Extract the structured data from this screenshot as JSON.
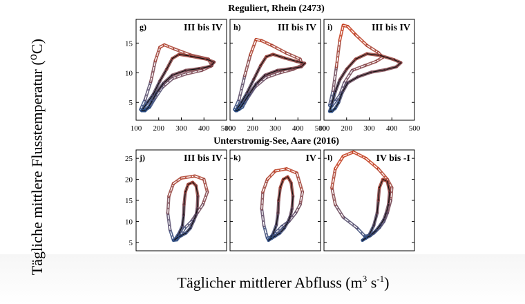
{
  "y_axis_title": "Tägliche mittlere Flusstemperatur (",
  "y_axis_unit_sup": "o",
  "y_axis_unit": "C)",
  "x_axis_title": "Täglicher mittlerer Abfluss (m",
  "x_axis_sup1": "3",
  "x_axis_mid": " s",
  "x_axis_sup2": "-1",
  "x_axis_end": ")",
  "colors": {
    "warm": "#c43c1c",
    "warm_light": "#f0a080",
    "cool": "#1f4e8c",
    "cool_light": "#9ab4d8",
    "black": "#111111"
  },
  "chart_data": [
    {
      "row_title": "Reguliert, Rhein (2473)",
      "xlim": [
        100,
        500
      ],
      "xticks": [
        100,
        200,
        300,
        400,
        500
      ],
      "ylim": [
        2,
        19
      ],
      "yticks": [
        5,
        10,
        15
      ],
      "panels": [
        {
          "letter": "g)",
          "label": "III bis IV",
          "dashed_loop": [
            [
              120,
              3.8
            ],
            [
              140,
              5.5
            ],
            [
              165,
              8.5
            ],
            [
              185,
              12
            ],
            [
              205,
              14.3
            ],
            [
              225,
              14.7
            ],
            [
              270,
              14
            ],
            [
              340,
              13
            ],
            [
              420,
              12.3
            ],
            [
              435,
              11.2
            ],
            [
              390,
              10.4
            ],
            [
              320,
              9.8
            ],
            [
              260,
              9
            ],
            [
              215,
              7.5
            ],
            [
              180,
              5.5
            ],
            [
              160,
              4.2
            ],
            [
              135,
              3.6
            ],
            [
              120,
              3.8
            ]
          ],
          "solid_loop": [
            [
              125,
              3.6
            ],
            [
              150,
              5
            ],
            [
              175,
              6.3
            ],
            [
              205,
              8.6
            ],
            [
              235,
              10.6
            ],
            [
              260,
              12.4
            ],
            [
              290,
              13.1
            ],
            [
              340,
              12.8
            ],
            [
              410,
              12.3
            ],
            [
              445,
              11.8
            ],
            [
              430,
              11.1
            ],
            [
              380,
              10.7
            ],
            [
              320,
              10.4
            ],
            [
              260,
              9.6
            ],
            [
              220,
              8.2
            ],
            [
              190,
              6.6
            ],
            [
              170,
              5.2
            ],
            [
              155,
              4.2
            ],
            [
              140,
              3.6
            ],
            [
              125,
              3.6
            ]
          ]
        },
        {
          "letter": "h)",
          "label": "III bis IV",
          "dashed_loop": [
            [
              120,
              3.8
            ],
            [
              140,
              5.5
            ],
            [
              165,
              9.5
            ],
            [
              190,
              13
            ],
            [
              215,
              15.6
            ],
            [
              240,
              15.4
            ],
            [
              285,
              14.6
            ],
            [
              350,
              13.3
            ],
            [
              410,
              12.3
            ],
            [
              420,
              11.3
            ],
            [
              380,
              10.6
            ],
            [
              320,
              10
            ],
            [
              260,
              9.2
            ],
            [
              210,
              7.6
            ],
            [
              175,
              5.6
            ],
            [
              155,
              4.2
            ],
            [
              130,
              3.6
            ],
            [
              120,
              3.8
            ]
          ],
          "solid_loop": [
            [
              125,
              3.6
            ],
            [
              150,
              5
            ],
            [
              175,
              6.6
            ],
            [
              205,
              8.9
            ],
            [
              235,
              11.2
            ],
            [
              260,
              12.7
            ],
            [
              290,
              13.1
            ],
            [
              340,
              12.5
            ],
            [
              395,
              11.9
            ],
            [
              430,
              11.6
            ],
            [
              415,
              11
            ],
            [
              370,
              10.7
            ],
            [
              310,
              10.4
            ],
            [
              255,
              9.6
            ],
            [
              215,
              8.1
            ],
            [
              185,
              6.4
            ],
            [
              160,
              4.9
            ],
            [
              140,
              3.8
            ],
            [
              125,
              3.6
            ]
          ]
        },
        {
          "letter": "i)",
          "label": "III bis IV",
          "dashed_loop": [
            [
              125,
              4.5
            ],
            [
              140,
              7
            ],
            [
              155,
              11
            ],
            [
              170,
              15.5
            ],
            [
              185,
              18
            ],
            [
              205,
              17.8
            ],
            [
              240,
              16.4
            ],
            [
              290,
              14.6
            ],
            [
              340,
              13.4
            ],
            [
              360,
              12.6
            ],
            [
              330,
              11.9
            ],
            [
              280,
              11.2
            ],
            [
              225,
              10.4
            ],
            [
              190,
              8.3
            ],
            [
              170,
              6.2
            ],
            [
              150,
              5.2
            ],
            [
              135,
              4.4
            ],
            [
              125,
              4.5
            ]
          ],
          "solid_loop": [
            [
              125,
              3.5
            ],
            [
              135,
              4.8
            ],
            [
              150,
              6.8
            ],
            [
              170,
              8.8
            ],
            [
              200,
              10.6
            ],
            [
              240,
              12.3
            ],
            [
              290,
              13.2
            ],
            [
              350,
              12.9
            ],
            [
              410,
              12.2
            ],
            [
              440,
              11.7
            ],
            [
              420,
              11
            ],
            [
              370,
              10.5
            ],
            [
              310,
              10.1
            ],
            [
              250,
              9.3
            ],
            [
              205,
              8.3
            ],
            [
              180,
              6.6
            ],
            [
              165,
              5
            ],
            [
              150,
              4
            ],
            [
              135,
              3.5
            ],
            [
              125,
              3.5
            ]
          ]
        }
      ]
    },
    {
      "row_title": "Unterstromig-See, Aare (2016)",
      "xlim": [
        100,
        500
      ],
      "xticks": [],
      "ylim": [
        3,
        27
      ],
      "yticks": [
        5,
        10,
        15,
        20,
        25
      ],
      "panels": [
        {
          "letter": "j)",
          "label": "III bis IV",
          "dashed_loop": [
            [
              265,
              5.5
            ],
            [
              250,
              8
            ],
            [
              240,
              12
            ],
            [
              245,
              16
            ],
            [
              265,
              19
            ],
            [
              300,
              20.3
            ],
            [
              360,
              20.8
            ],
            [
              400,
              20
            ],
            [
              415,
              17
            ],
            [
              395,
              14
            ],
            [
              370,
              12
            ],
            [
              345,
              10
            ],
            [
              315,
              8.4
            ],
            [
              295,
              6.6
            ],
            [
              280,
              5.6
            ],
            [
              265,
              5.5
            ]
          ],
          "solid_loop": [
            [
              270,
              5.6
            ],
            [
              290,
              7.2
            ],
            [
              305,
              9
            ],
            [
              310,
              11.5
            ],
            [
              312,
              14
            ],
            [
              318,
              17
            ],
            [
              330,
              18.8
            ],
            [
              350,
              19.3
            ],
            [
              365,
              18.5
            ],
            [
              373,
              16
            ],
            [
              370,
              13
            ],
            [
              365,
              11.5
            ],
            [
              355,
              10.2
            ],
            [
              340,
              8.4
            ],
            [
              320,
              7.2
            ],
            [
              300,
              6.6
            ],
            [
              285,
              6.2
            ],
            [
              270,
              5.6
            ]
          ]
        },
        {
          "letter": "k)",
          "label": "IV",
          "dashed_loop": [
            [
              265,
              6
            ],
            [
              250,
              9
            ],
            [
              240,
              13
            ],
            [
              245,
              17
            ],
            [
              265,
              20
            ],
            [
              300,
              22
            ],
            [
              350,
              22.5
            ],
            [
              395,
              21.5
            ],
            [
              420,
              17
            ],
            [
              410,
              14
            ],
            [
              390,
              12
            ],
            [
              360,
              10
            ],
            [
              330,
              8.8
            ],
            [
              300,
              7.2
            ],
            [
              280,
              6.2
            ],
            [
              265,
              6
            ]
          ],
          "solid_loop": [
            [
              270,
              5.5
            ],
            [
              290,
              7
            ],
            [
              305,
              9.2
            ],
            [
              312,
              12
            ],
            [
              315,
              15
            ],
            [
              322,
              18
            ],
            [
              335,
              20
            ],
            [
              355,
              20.6
            ],
            [
              370,
              19.2
            ],
            [
              378,
              16
            ],
            [
              374,
              13
            ],
            [
              366,
              11.2
            ],
            [
              355,
              9.8
            ],
            [
              340,
              8.4
            ],
            [
              320,
              7.2
            ],
            [
              300,
              6.5
            ],
            [
              285,
              6
            ],
            [
              270,
              5.5
            ]
          ]
        },
        {
          "letter": "l)",
          "label": "IV bis -I",
          "dashed_loop": [
            [
              280,
              6.5
            ],
            [
              245,
              8.5
            ],
            [
              185,
              11
            ],
            [
              150,
              14
            ],
            [
              135,
              18
            ],
            [
              150,
              22.5
            ],
            [
              185,
              25.5
            ],
            [
              230,
              26.5
            ],
            [
              285,
              25
            ],
            [
              340,
              22.5
            ],
            [
              380,
              20
            ],
            [
              400,
              18
            ],
            [
              395,
              15
            ],
            [
              380,
              12
            ],
            [
              365,
              10
            ],
            [
              345,
              8.5
            ],
            [
              320,
              7.2
            ],
            [
              300,
              6.6
            ],
            [
              280,
              6.5
            ]
          ],
          "solid_loop": [
            [
              270,
              5.5
            ],
            [
              300,
              6.8
            ],
            [
              320,
              9
            ],
            [
              335,
              12
            ],
            [
              340,
              15
            ],
            [
              345,
              18
            ],
            [
              360,
              20
            ],
            [
              380,
              19.5
            ],
            [
              390,
              17
            ],
            [
              385,
              14
            ],
            [
              375,
              12
            ],
            [
              365,
              10.5
            ],
            [
              350,
              9.2
            ],
            [
              330,
              7.8
            ],
            [
              305,
              6.6
            ],
            [
              285,
              6
            ],
            [
              270,
              5.5
            ]
          ]
        }
      ]
    }
  ]
}
